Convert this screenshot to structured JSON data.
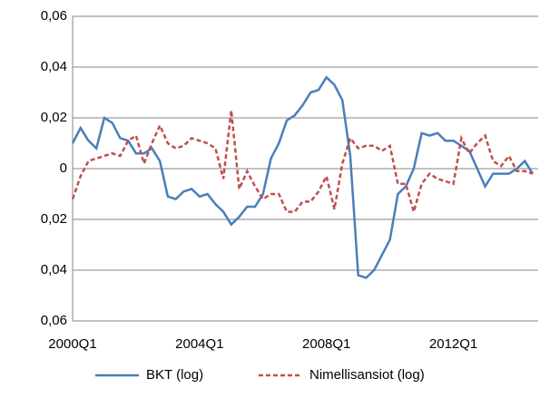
{
  "chart_data": {
    "type": "line",
    "categories": [
      "2000Q1",
      null,
      null,
      null,
      null,
      null,
      null,
      null,
      null,
      null,
      null,
      null,
      null,
      null,
      null,
      null,
      "2004Q1",
      null,
      null,
      null,
      null,
      null,
      null,
      null,
      null,
      null,
      null,
      null,
      null,
      null,
      null,
      null,
      "2008Q1",
      null,
      null,
      null,
      null,
      null,
      null,
      null,
      null,
      null,
      null,
      null,
      null,
      null,
      null,
      null,
      "2012Q1",
      null,
      null,
      null,
      null,
      null,
      null,
      null,
      null,
      null,
      null
    ],
    "series": [
      {
        "name": "BKT (log)",
        "color": "#4a7ebb",
        "style": "solid",
        "values": [
          0.01,
          0.016,
          0.011,
          0.008,
          0.02,
          0.018,
          0.012,
          0.011,
          0.006,
          0.006,
          0.008,
          0.003,
          -0.011,
          -0.012,
          -0.009,
          -0.008,
          -0.011,
          -0.01,
          -0.014,
          -0.017,
          -0.022,
          -0.019,
          -0.015,
          -0.015,
          -0.01,
          0.004,
          0.01,
          0.019,
          0.021,
          0.025,
          0.03,
          0.031,
          0.036,
          0.033,
          0.027,
          0.005,
          -0.042,
          -0.043,
          -0.04,
          -0.034,
          -0.028,
          -0.01,
          -0.007,
          0.0,
          0.014,
          0.013,
          0.014,
          0.011,
          0.011,
          0.009,
          0.007,
          0.0,
          -0.007,
          -0.002,
          -0.002,
          -0.002,
          0.0,
          0.003,
          -0.002
        ]
      },
      {
        "name": "Nimellisansiot (log)",
        "color": "#c0504d",
        "style": "dashed",
        "values": [
          -0.012,
          -0.003,
          0.003,
          0.004,
          0.005,
          0.006,
          0.005,
          0.011,
          0.013,
          0.002,
          0.01,
          0.017,
          0.01,
          0.008,
          0.009,
          0.012,
          0.011,
          0.01,
          0.008,
          -0.004,
          0.023,
          -0.008,
          -0.001,
          -0.007,
          -0.012,
          -0.01,
          -0.01,
          -0.017,
          -0.017,
          -0.013,
          -0.013,
          -0.009,
          -0.003,
          -0.016,
          0.002,
          0.012,
          0.008,
          0.009,
          0.009,
          0.007,
          0.009,
          -0.006,
          -0.006,
          -0.017,
          -0.006,
          -0.002,
          -0.004,
          -0.005,
          -0.006,
          0.012,
          0.006,
          0.01,
          0.013,
          0.003,
          0.001,
          0.005,
          -0.001,
          -0.001,
          -0.002
        ]
      }
    ],
    "ylim": [
      -0.06,
      0.06
    ],
    "yticks": [
      {
        "value": -0.06,
        "label": "0,06"
      },
      {
        "value": -0.04,
        "label": "0,04"
      },
      {
        "value": -0.02,
        "label": "0,02"
      },
      0,
      {
        "value": 0.02,
        "label": "0,02"
      },
      {
        "value": 0.04,
        "label": "0,04"
      },
      {
        "value": 0.06,
        "label": "0,06"
      }
    ],
    "grid": true,
    "legend": "bottom"
  }
}
